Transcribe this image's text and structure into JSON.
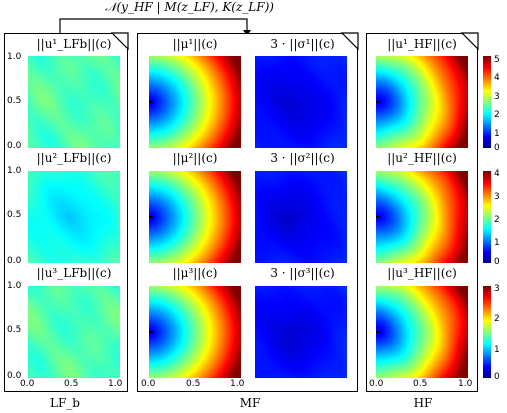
{
  "top_formula": "𝒩(y_HF | M(z_LF), K(z_LF))",
  "columns": {
    "lf": "LF_b",
    "mf": "MF",
    "hf": "HF"
  },
  "panel_titles": {
    "lf": [
      "||u¹_LFb||(c)",
      "||u²_LFb||(c)",
      "||u³_LFb||(c)"
    ],
    "mf_mu": [
      "||μ¹||(c)",
      "||μ²||(c)",
      "||μ³||(c)"
    ],
    "mf_sigma": [
      "3 · ||σ¹||(c)",
      "3 · ||σ²||(c)",
      "3 · ||σ³||(c)"
    ],
    "hf": [
      "||u¹_HF||(c)",
      "||u²_HF||(c)",
      "||u³_HF||(c)"
    ]
  },
  "y_ticks": [
    "1.0",
    "0.5",
    "0.0"
  ],
  "x_ticks": [
    "0.0",
    "0.5",
    "1.0"
  ],
  "colorbars": [
    {
      "ticks": [
        "5",
        "4",
        "3",
        "2",
        "1",
        "0"
      ]
    },
    {
      "ticks": [
        "4",
        "3",
        "2",
        "1",
        "0"
      ]
    },
    {
      "ticks": [
        "3",
        "2",
        "1",
        "0"
      ]
    }
  ],
  "colors": {
    "frame": "#000000",
    "background": "#ffffff"
  }
}
